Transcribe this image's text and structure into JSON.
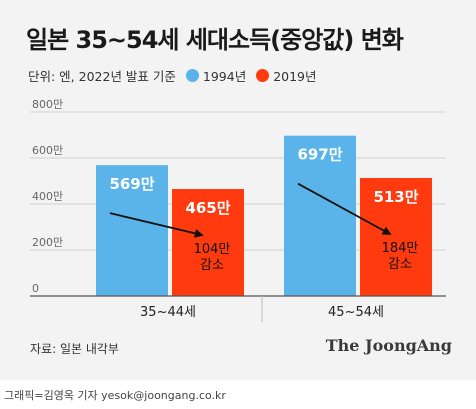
{
  "title": "일본 35~54세 세대소득(중앙값) 변화",
  "legend_unit": "단위: 엔, 2022년 발표 기준",
  "source": "자료: 일본 내각부",
  "brand": "The JoongAng",
  "credit": "그래픽=김영옥 기자 yesok@joongang.co.kr",
  "colors": {
    "series_1994": "#5ab4e9",
    "series_2019": "#ff3a0f",
    "arrow": "#111111",
    "axis": "#555555"
  },
  "chart_data": {
    "type": "bar",
    "categories": [
      "35~44세",
      "45~54세"
    ],
    "series": [
      {
        "name": "1994년",
        "values": [
          569,
          697
        ],
        "labels": [
          "569만",
          "697만"
        ]
      },
      {
        "name": "2019년",
        "values": [
          465,
          513
        ],
        "labels": [
          "465만",
          "513만"
        ]
      }
    ],
    "yticks": [
      0,
      200,
      400,
      600,
      800
    ],
    "ytick_labels": [
      "0",
      "200만",
      "400만",
      "600만",
      "800만"
    ],
    "ylim": [
      0,
      800
    ],
    "annotations": [
      {
        "category": "35~44세",
        "line1": "104만",
        "line2": "감소"
      },
      {
        "category": "45~54세",
        "line1": "184만",
        "line2": "감소"
      }
    ]
  }
}
